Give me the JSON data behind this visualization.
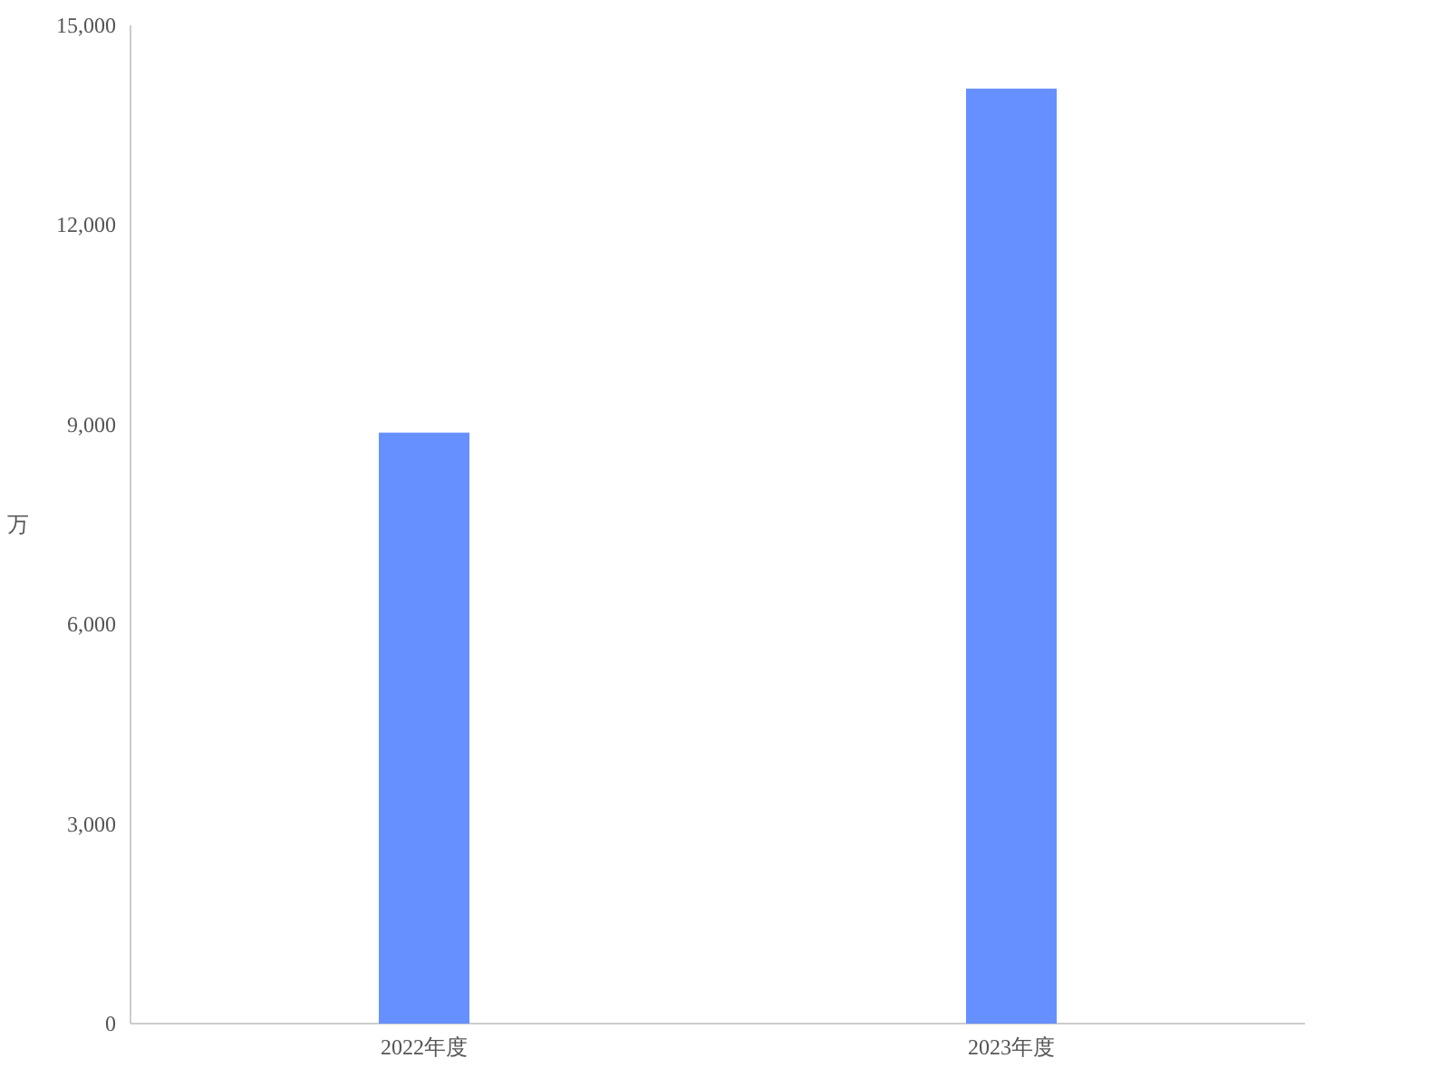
{
  "chart_data": {
    "type": "bar",
    "ylabel": "万",
    "categories": [
      "2022年度",
      "2023年度"
    ],
    "values": [
      8880,
      14050
    ],
    "color": "#6690ff",
    "ylim": [
      0,
      15000
    ],
    "yticks": [
      {
        "value": 0,
        "label": "0"
      },
      {
        "value": 3000,
        "label": "3,000"
      },
      {
        "value": 6000,
        "label": "6,000"
      },
      {
        "value": 9000,
        "label": "9,000"
      },
      {
        "value": 12000,
        "label": "12,000"
      },
      {
        "value": 15000,
        "label": "15,000"
      }
    ],
    "grid": false
  }
}
